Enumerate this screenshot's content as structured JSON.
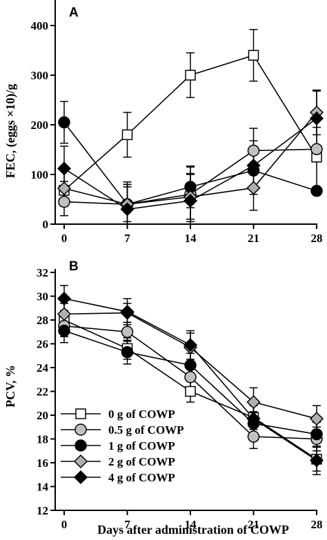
{
  "chart_data": [
    {
      "type": "line",
      "panel_label": "A",
      "xlabel": "",
      "ylabel": "FEC, (eggs ×10)/g",
      "x": [
        0,
        7,
        14,
        21,
        28
      ],
      "xticks": [
        "0",
        "7",
        "14",
        "21",
        "28"
      ],
      "yticks": [
        "0",
        "100",
        "200",
        "300",
        "400"
      ],
      "ylim": [
        0,
        400
      ],
      "grid": false,
      "series": [
        {
          "name": "0 g of COWP",
          "marker": "square",
          "fill": "#ffffff",
          "values": [
            68,
            180,
            300,
            340,
            135
          ],
          "errors": [
            18,
            45,
            45,
            52,
            60
          ]
        },
        {
          "name": "0.5 g of COWP",
          "marker": "circle",
          "fill": "#c0c0c0",
          "values": [
            45,
            40,
            60,
            148,
            151
          ],
          "errors": [
            28,
            45,
            55,
            45,
            0
          ]
        },
        {
          "name": "1 g of COWP",
          "marker": "circle",
          "fill": "#000000",
          "values": [
            205,
            40,
            75,
            108,
            67
          ],
          "errors": [
            42,
            40,
            42,
            48,
            0
          ]
        },
        {
          "name": "2 g of COWP",
          "marker": "diamond",
          "fill": "#b0b0b0",
          "values": [
            72,
            40,
            55,
            73,
            225
          ],
          "errors": [
            36,
            35,
            45,
            45,
            45
          ]
        },
        {
          "name": "4 g of COWP",
          "marker": "diamond",
          "fill": "#000000",
          "values": [
            112,
            30,
            47,
            118,
            213
          ],
          "errors": [
            45,
            50,
            55,
            50,
            55
          ]
        }
      ]
    },
    {
      "type": "line",
      "panel_label": "B",
      "xlabel": "Days after administration of COWP",
      "ylabel": "PCV, %",
      "x": [
        0,
        7,
        14,
        21,
        28
      ],
      "xticks": [
        "0",
        "7",
        "14",
        "21",
        "28"
      ],
      "yticks": [
        "12",
        "14",
        "16",
        "18",
        "20",
        "22",
        "24",
        "26",
        "28",
        "30",
        "32"
      ],
      "ylim": [
        12,
        32
      ],
      "grid": false,
      "legend": "bottom-left",
      "series": [
        {
          "name": "0 g of COWP",
          "marker": "square",
          "fill": "#ffffff",
          "values": [
            28.0,
            25.6,
            22.0,
            19.8,
            16.3
          ],
          "errors": [
            0.8,
            0.9,
            0.9,
            1.0,
            1.0
          ]
        },
        {
          "name": "0.5 g of COWP",
          "marker": "circle",
          "fill": "#c0c0c0",
          "values": [
            27.5,
            27.0,
            23.2,
            18.2,
            18.0
          ],
          "errors": [
            0.9,
            0.8,
            0.9,
            1.0,
            1.0
          ]
        },
        {
          "name": "1 g of COWP",
          "marker": "circle",
          "fill": "#000000",
          "values": [
            27.1,
            25.3,
            24.2,
            19.3,
            18.4
          ],
          "errors": [
            1.0,
            1.0,
            1.0,
            1.0,
            1.0
          ]
        },
        {
          "name": "2 g of COWP",
          "marker": "diamond",
          "fill": "#b0b0b0",
          "values": [
            28.5,
            28.6,
            25.7,
            21.1,
            19.7
          ],
          "errors": [
            0.9,
            0.8,
            1.2,
            1.2,
            1.1
          ]
        },
        {
          "name": "4 g of COWP",
          "marker": "diamond",
          "fill": "#000000",
          "values": [
            29.8,
            28.7,
            25.9,
            19.7,
            16.2
          ],
          "errors": [
            1.1,
            1.1,
            1.2,
            1.2,
            1.2
          ]
        }
      ]
    }
  ]
}
